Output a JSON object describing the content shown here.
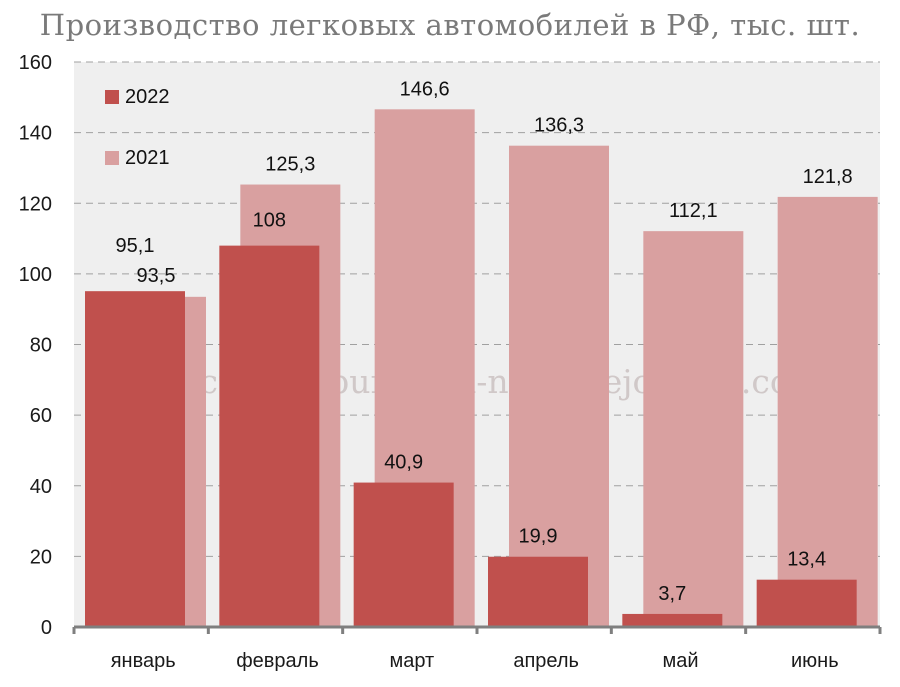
{
  "title": "Производство легковых автомобилей в РФ, тыс. шт.",
  "watermark": "Росстат © burckina-new.livejournal.com",
  "colors": {
    "s2022": "#c0504d",
    "s2021": "#d9a0a0",
    "plot_bg": "#efefef",
    "grid": "#a0a0a0",
    "axis": "#7f7f7f"
  },
  "chart_data": {
    "type": "bar",
    "title": "Производство легковых автомобилей в РФ, тыс. шт.",
    "categories": [
      "январь",
      "февраль",
      "март",
      "апрель",
      "май",
      "июнь"
    ],
    "series": [
      {
        "name": "2022",
        "values": [
          95.1,
          108,
          40.9,
          19.9,
          3.7,
          13.4
        ],
        "labels": [
          "95,1",
          "108",
          "40,9",
          "19,9",
          "3,7",
          "13,4"
        ]
      },
      {
        "name": "2021",
        "values": [
          93.5,
          125.3,
          146.6,
          136.3,
          112.1,
          121.8
        ],
        "labels": [
          "93,5",
          "125,3",
          "146,6",
          "136,3",
          "112,1",
          "121,8"
        ]
      }
    ],
    "yticks": [
      0,
      20,
      40,
      60,
      80,
      100,
      120,
      140,
      160
    ],
    "ylim": [
      0,
      160
    ],
    "grid": true,
    "legend": "top-left"
  }
}
